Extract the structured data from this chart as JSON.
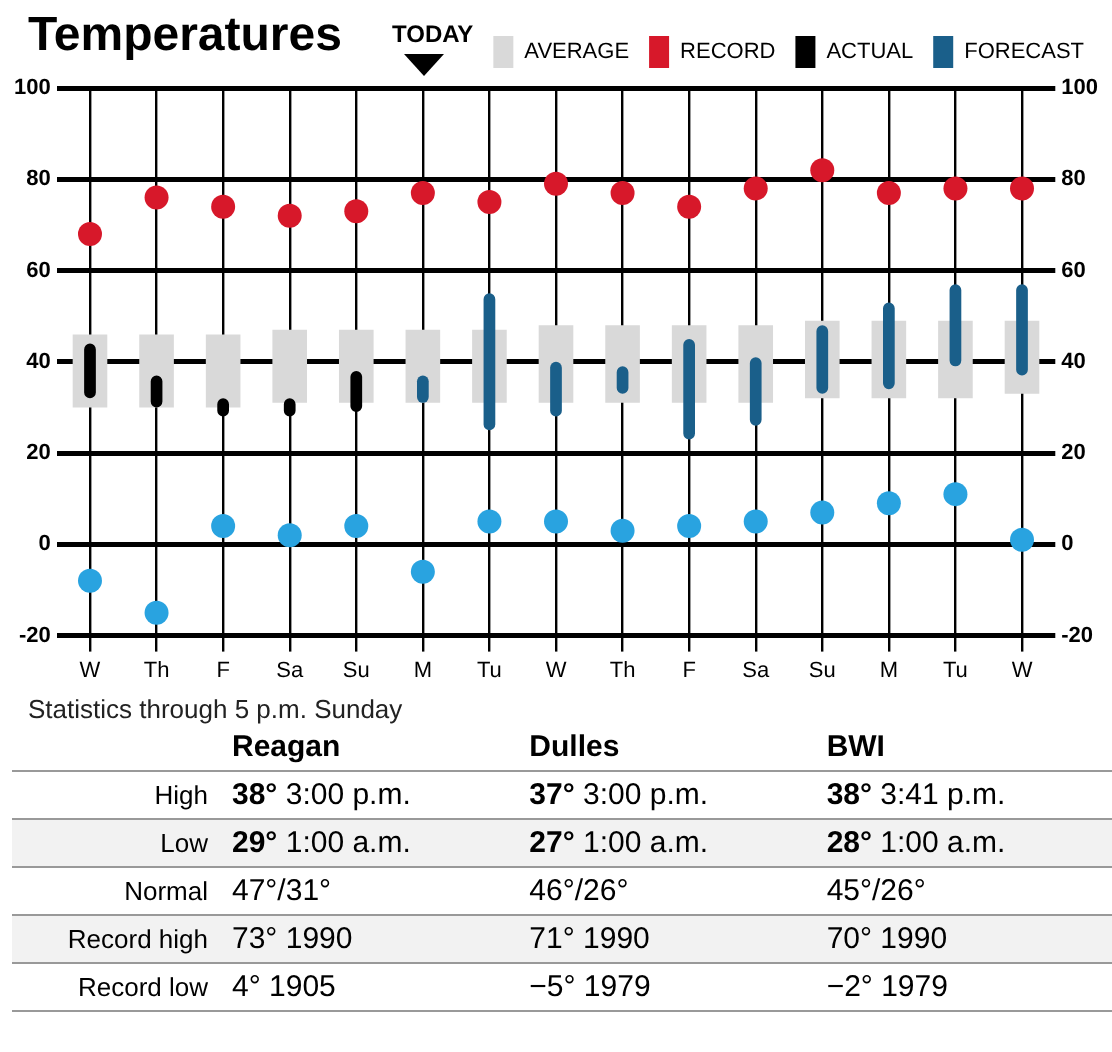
{
  "chart_data": {
    "type": "bar",
    "title": "Temperatures",
    "categories": [
      "W",
      "Th",
      "F",
      "Sa",
      "Su",
      "M",
      "Tu",
      "W",
      "Th",
      "F",
      "Sa",
      "Su",
      "M",
      "Tu",
      "W"
    ],
    "series": [
      {
        "name": "AVERAGE",
        "type": "bar",
        "color": "#d9d9d9",
        "base": [
          30,
          30,
          30,
          31,
          31,
          31,
          31,
          31,
          31,
          31,
          31,
          32,
          32,
          32,
          33
        ],
        "values": [
          16,
          16,
          16,
          16,
          16,
          16,
          16,
          17,
          17,
          17,
          17,
          17,
          17,
          17,
          16
        ]
      },
      {
        "name": "RECORD",
        "type": "scatter",
        "color": "#d7182a",
        "values": [
          68,
          76,
          74,
          72,
          73,
          77,
          75,
          79,
          77,
          74,
          78,
          82,
          77,
          78,
          78
        ]
      },
      {
        "type": "scatter",
        "color": "#29a3e0",
        "values": [
          -8,
          -15,
          4,
          2,
          4,
          -6,
          5,
          5,
          3,
          4,
          5,
          7,
          9,
          11,
          1
        ]
      },
      {
        "name": "ACTUAL",
        "type": "bar",
        "color": "#000000",
        "base": [
          32,
          30,
          28,
          28,
          29,
          null,
          null,
          null,
          null,
          null,
          null,
          null,
          null,
          null,
          null
        ],
        "values": [
          12,
          7,
          4,
          4,
          9,
          null,
          null,
          null,
          null,
          null,
          null,
          null,
          null,
          null,
          null
        ]
      },
      {
        "name": "FORECAST",
        "type": "bar",
        "color": "#1a5f8a",
        "base": [
          null,
          null,
          null,
          null,
          null,
          31,
          25,
          28,
          33,
          23,
          26,
          33,
          34,
          39,
          37
        ],
        "values": [
          null,
          null,
          null,
          null,
          null,
          6,
          30,
          12,
          6,
          22,
          15,
          15,
          19,
          18,
          20
        ]
      }
    ],
    "ylim": [
      -20,
      100
    ],
    "yticks": [
      -20,
      0,
      20,
      40,
      60,
      80,
      100
    ],
    "y2lim": [
      -20,
      100
    ],
    "y2ticks": [
      -20,
      0,
      20,
      40,
      60,
      80,
      100
    ],
    "grid": true,
    "legend": "top right",
    "marker": "circle",
    "annotations": [
      "TODAY",
      "Statistics through 5 p.m. Sunday",
      "Reagan",
      "Dulles",
      "BWI",
      "High",
      "38° 3:00 p.m.",
      "37° 3:00 p.m.",
      "38° 3:41 p.m.",
      "Low",
      "29° 1:00 a.m.",
      "27° 1:00 a.m.",
      "28° 1:00 a.m.",
      "Normal",
      "47°/31°",
      "46°/26°",
      "45°/26°",
      "Record high",
      "73° 1990",
      "71° 1990",
      "70° 1990",
      "Record low",
      "4° 1905",
      "−5° 1979",
      "−2° 1979"
    ]
  }
}
